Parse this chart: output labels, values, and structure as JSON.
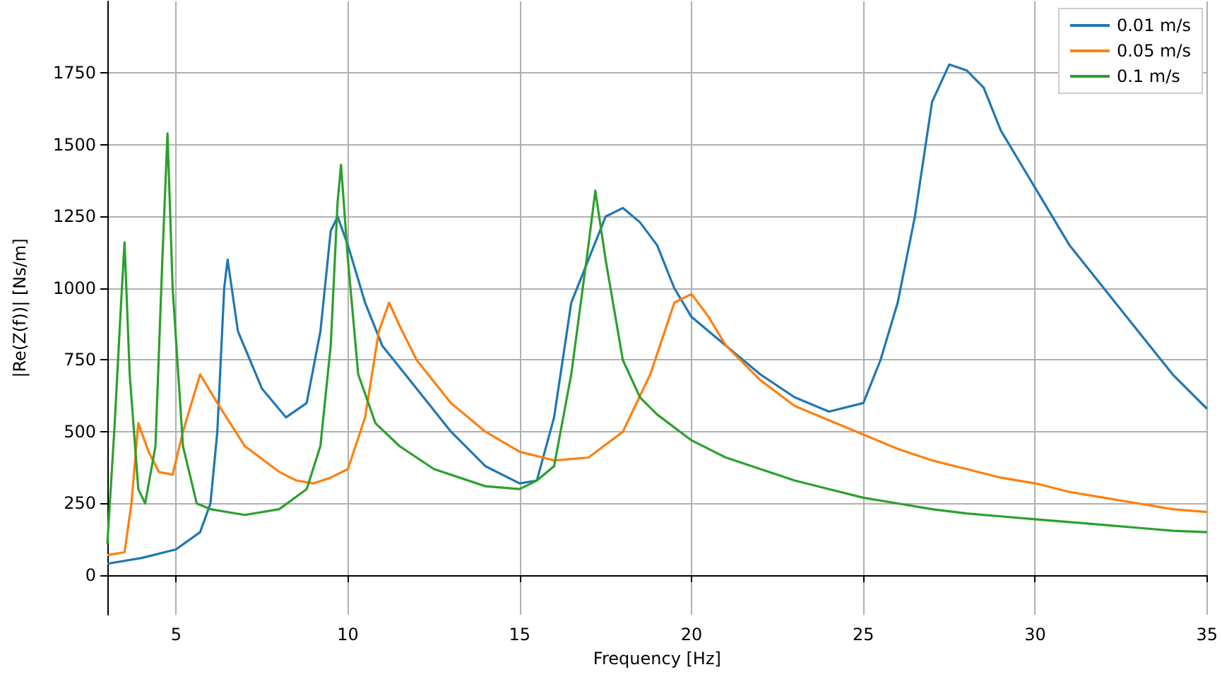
{
  "chart_data": {
    "type": "line",
    "xlabel": "Frequency [Hz]",
    "ylabel": "|Re(Z(f))| [Ns/m]",
    "xlim": [
      3,
      35
    ],
    "xticks": [
      5,
      10,
      15,
      20,
      25,
      30,
      35
    ],
    "ylim": [
      -138,
      2000
    ],
    "yticks": [
      0,
      250,
      500,
      750,
      1000,
      1250,
      1500,
      1750
    ],
    "grid": true,
    "legend": "top right",
    "marker": "none",
    "line_style": "solid",
    "series": [
      {
        "name": "0.01 m/s",
        "color": "#1f77b4",
        "x": [
          3,
          4,
          5,
          5.7,
          6.0,
          6.2,
          6.4,
          6.5,
          6.8,
          7.5,
          8.2,
          8.8,
          9.2,
          9.5,
          9.7,
          10.0,
          10.5,
          11,
          12,
          13,
          14,
          15,
          15.5,
          16,
          16.5,
          17,
          17.5,
          18,
          18.5,
          19,
          19.5,
          20,
          21,
          22,
          23,
          24,
          25,
          25.5,
          26,
          26.5,
          27,
          27.5,
          28,
          28.5,
          29,
          29.5,
          30,
          31,
          32,
          33,
          34,
          35
        ],
        "values": [
          40,
          60,
          90,
          150,
          250,
          500,
          1000,
          1100,
          850,
          650,
          550,
          600,
          850,
          1200,
          1250,
          1150,
          950,
          800,
          650,
          500,
          380,
          320,
          330,
          550,
          950,
          1100,
          1250,
          1280,
          1230,
          1150,
          1000,
          900,
          800,
          700,
          620,
          570,
          600,
          750,
          950,
          1250,
          1650,
          1780,
          1760,
          1700,
          1550,
          1450,
          1350,
          1150,
          1000,
          850,
          700,
          580
        ]
      },
      {
        "name": "0.05 m/s",
        "color": "#ff7f0e",
        "x": [
          3,
          3.5,
          3.7,
          3.9,
          4.2,
          4.5,
          4.9,
          5.2,
          5.7,
          6.2,
          7,
          8,
          8.5,
          9,
          9.5,
          10,
          10.5,
          10.9,
          11.2,
          11.5,
          12,
          13,
          14,
          15,
          16,
          17,
          18,
          18.8,
          19.5,
          20,
          20.5,
          21,
          22,
          23,
          24,
          25,
          26,
          27,
          28,
          29,
          30,
          31,
          32,
          33,
          34,
          35
        ],
        "values": [
          70,
          80,
          250,
          530,
          430,
          360,
          350,
          500,
          700,
          600,
          450,
          360,
          330,
          320,
          340,
          370,
          550,
          850,
          950,
          870,
          750,
          600,
          500,
          430,
          400,
          410,
          500,
          700,
          950,
          980,
          900,
          800,
          680,
          590,
          540,
          490,
          440,
          400,
          370,
          340,
          320,
          290,
          270,
          250,
          230,
          220
        ]
      },
      {
        "name": "0.1 m/s",
        "color": "#2ca02c",
        "x": [
          3,
          3.2,
          3.4,
          3.5,
          3.65,
          3.9,
          4.1,
          4.4,
          4.6,
          4.75,
          4.9,
          5.2,
          5.6,
          6,
          7,
          8,
          8.8,
          9.2,
          9.5,
          9.7,
          9.8,
          10.0,
          10.3,
          10.8,
          11.5,
          12.5,
          14,
          15,
          15.5,
          16,
          16.5,
          17,
          17.2,
          17.5,
          18,
          18.5,
          19,
          20,
          21,
          22,
          23,
          24,
          25,
          26,
          27,
          28,
          29,
          30,
          31,
          32,
          33,
          34,
          35
        ],
        "values": [
          110,
          500,
          950,
          1160,
          700,
          300,
          250,
          450,
          1100,
          1540,
          1000,
          450,
          250,
          230,
          210,
          230,
          300,
          450,
          800,
          1300,
          1430,
          1100,
          700,
          530,
          450,
          370,
          310,
          300,
          330,
          380,
          700,
          1150,
          1340,
          1100,
          750,
          620,
          560,
          470,
          410,
          370,
          330,
          300,
          270,
          250,
          230,
          215,
          205,
          195,
          185,
          175,
          165,
          155,
          150
        ]
      }
    ]
  }
}
